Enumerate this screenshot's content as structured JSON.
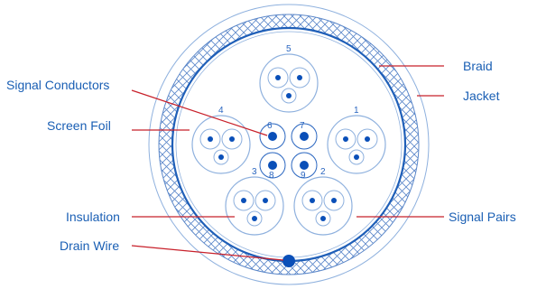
{
  "labels": {
    "signal_conductors": "Signal Conductors",
    "screen_foil": "Screen Foil",
    "insulation": "Insulation",
    "drain_wire": "Drain Wire",
    "braid": "Braid",
    "jacket": "Jacket",
    "signal_pairs": "Signal Pairs"
  },
  "pair_numbers": [
    "1",
    "2",
    "3",
    "4",
    "5"
  ],
  "conductor_numbers": [
    "6",
    "7",
    "8",
    "9"
  ],
  "colors": {
    "label_text": "#1a5fb4",
    "leader_line": "#c8202a",
    "outline": "#2a66c0",
    "light_outline": "#8fb1de",
    "conductor_fill": "#0a4fb8"
  }
}
